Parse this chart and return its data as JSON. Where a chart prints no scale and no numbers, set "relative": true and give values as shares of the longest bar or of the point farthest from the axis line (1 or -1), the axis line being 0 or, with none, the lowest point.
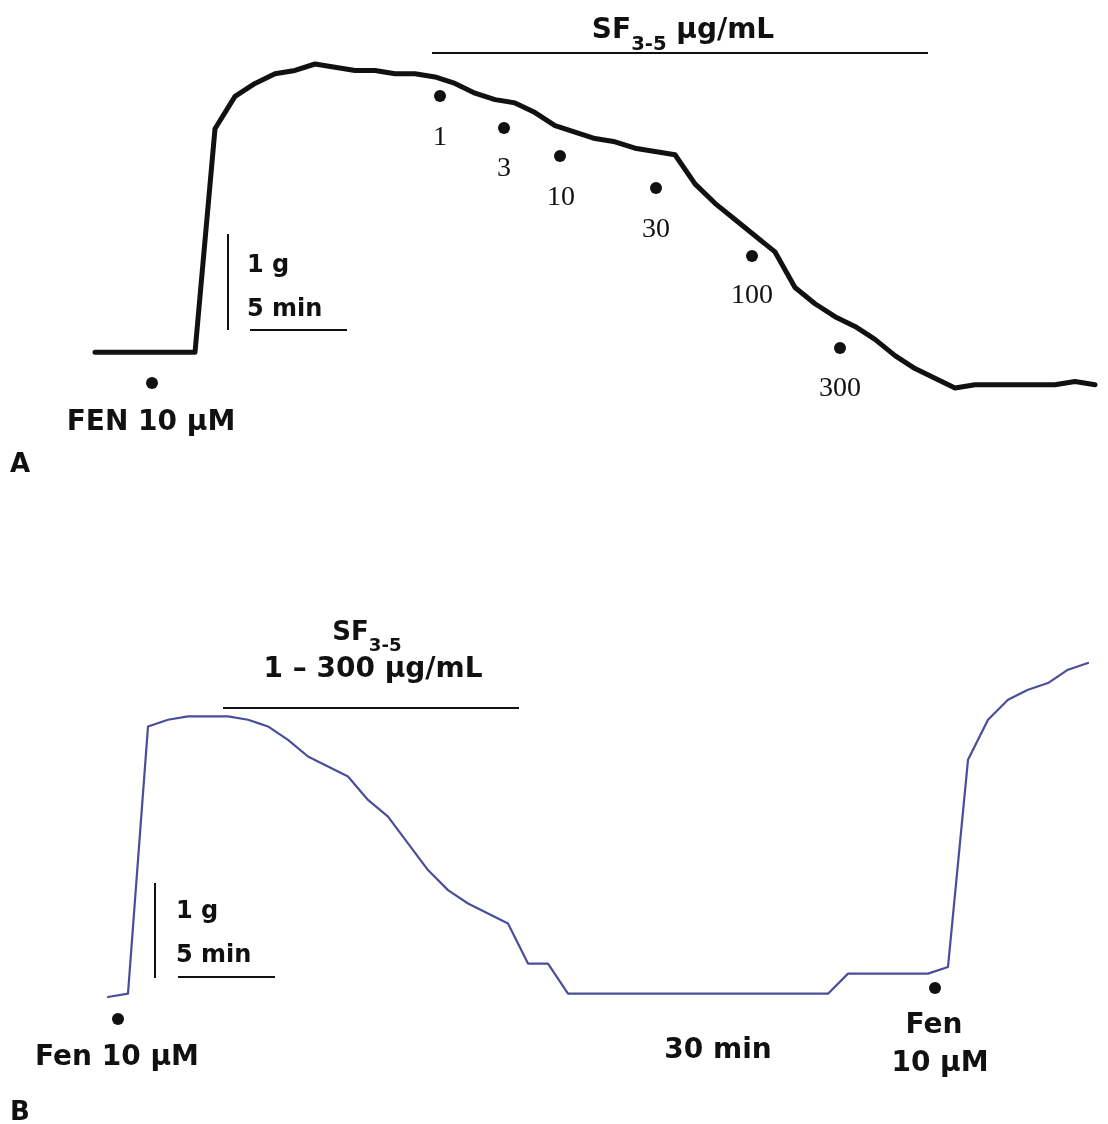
{
  "chart_data": [
    {
      "type": "line",
      "title": "A",
      "relative": true,
      "categories": [
        null,
        null,
        null,
        null,
        null,
        null,
        null,
        null,
        null,
        null,
        null,
        null,
        null,
        null,
        null,
        null,
        null,
        null,
        null,
        null,
        null,
        null,
        null,
        null,
        null,
        null,
        null,
        null,
        null,
        null,
        null,
        null,
        null,
        null,
        null,
        null,
        null,
        null,
        null,
        null,
        null,
        null,
        null,
        null,
        null,
        null,
        null,
        null,
        null,
        null,
        null
      ],
      "series": [
        {
          "color": "#111111",
          "values": [
            0.11,
            0.11,
            0.11,
            0.11,
            0.11,
            0.11,
            0.8,
            0.9,
            0.94,
            0.97,
            0.98,
            1.0,
            0.99,
            0.98,
            0.98,
            0.97,
            0.97,
            0.96,
            0.94,
            0.91,
            0.89,
            0.88,
            0.85,
            0.81,
            0.79,
            0.77,
            0.76,
            0.74,
            0.73,
            0.72,
            0.63,
            0.57,
            0.52,
            0.47,
            0.42,
            0.31,
            0.26,
            0.22,
            0.19,
            0.15,
            0.1,
            0.06,
            0.03,
            0,
            0.01,
            0.01,
            0.01,
            0.01,
            0.01,
            0.02,
            0.01
          ]
        }
      ],
      "annotations": [
        "SF$_{3-5}$ μg/mL",
        "1",
        "3",
        "10",
        "30",
        "100",
        "300",
        "1 g",
        "5 min",
        "FEN 10 μM"
      ]
    },
    {
      "type": "line",
      "title": "B",
      "relative": true,
      "categories": [
        null,
        null,
        null,
        null,
        null,
        null,
        null,
        null,
        null,
        null,
        null,
        null,
        null,
        null,
        null,
        null,
        null,
        null,
        null,
        null,
        null,
        null,
        null,
        null,
        null,
        null,
        null,
        null,
        null,
        null,
        null,
        null,
        null,
        null,
        null,
        null,
        null,
        null,
        null,
        null,
        null,
        null,
        null,
        null,
        null,
        null,
        null,
        null,
        null,
        null
      ],
      "series": [
        {
          "color": "#4a4e9a",
          "values": [
            0,
            0.01,
            0.81,
            0.83,
            0.84,
            0.84,
            0.84,
            0.83,
            0.81,
            0.77,
            0.72,
            0.69,
            0.66,
            0.59,
            0.54,
            0.46,
            0.38,
            0.32,
            0.28,
            0.25,
            0.22,
            0.1,
            0.1,
            0.01,
            0.01,
            0.01,
            0.01,
            0.01,
            0.01,
            0.01,
            0.01,
            0.01,
            0.01,
            0.01,
            0.01,
            0.01,
            0.01,
            0.07,
            0.07,
            0.07,
            0.07,
            0.07,
            0.09,
            0.71,
            0.83,
            0.89,
            0.92,
            0.94,
            0.98,
            1.0
          ]
        }
      ],
      "annotations": [
        "SF$_{3-5}$",
        "1 – 300 μg/mL",
        "1 g",
        "5 min",
        "Fen 10 μM",
        "30 min",
        "Fen",
        "10 μM"
      ]
    }
  ]
}
